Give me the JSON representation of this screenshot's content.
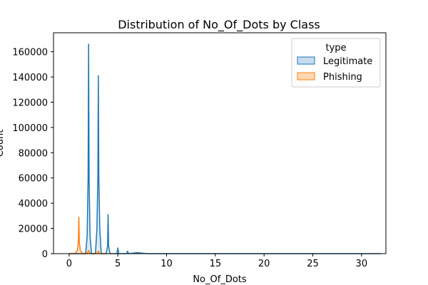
{
  "chart_data": {
    "type": "area",
    "title": "Distribution of No_Of_Dots by Class",
    "xlabel": "No_Of_Dots",
    "ylabel": "Count",
    "xlim": [
      -1.6,
      32.5
    ],
    "ylim": [
      0,
      175000
    ],
    "xticks": [
      0,
      5,
      10,
      15,
      20,
      25,
      30
    ],
    "yticks": [
      0,
      20000,
      40000,
      60000,
      80000,
      100000,
      120000,
      140000,
      160000
    ],
    "grid": false,
    "legend": {
      "title": "type",
      "placement": "top-right"
    },
    "series": [
      {
        "name": "Legitimate",
        "color": "#1f77b4",
        "fill": "#c6dbef",
        "x": [
          0,
          1.7,
          1.85,
          1.95,
          2,
          2.05,
          2.15,
          2.3,
          2.7,
          2.85,
          2.95,
          3,
          3.05,
          3.15,
          3.3,
          3.8,
          3.95,
          4,
          4.05,
          4.2,
          4.9,
          5,
          5.1,
          5.9,
          6,
          6.1,
          7,
          8,
          32
        ],
        "y": [
          0,
          0,
          14000,
          60000,
          166000,
          60000,
          14000,
          0,
          0,
          19000,
          60000,
          141000,
          60000,
          19000,
          0,
          0,
          6000,
          31000,
          6000,
          0,
          0,
          4500,
          0,
          0,
          2000,
          0,
          800,
          0,
          0
        ]
      },
      {
        "name": "Phishing",
        "color": "#ff7f0e",
        "fill": "#ffd8b3",
        "x": [
          0,
          0.6,
          0.85,
          0.95,
          1,
          1.05,
          1.15,
          1.4,
          1.85,
          2,
          2.15,
          2.85,
          3,
          3.15,
          4
        ],
        "y": [
          0,
          0,
          2500,
          9000,
          29000,
          9000,
          2500,
          0,
          0,
          2500,
          0,
          0,
          2000,
          0,
          0
        ]
      }
    ]
  }
}
